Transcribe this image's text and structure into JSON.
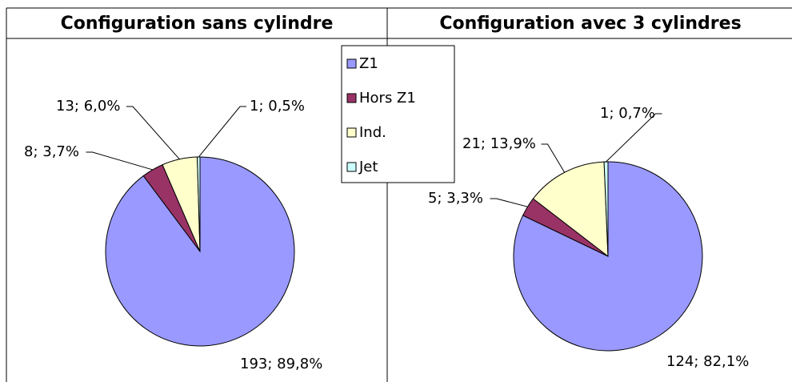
{
  "chart_data": [
    {
      "type": "pie",
      "title": "Configuration sans cylindre",
      "categories": [
        "Z1",
        "Hors Z1",
        "Ind.",
        "Jet"
      ],
      "values": [
        193,
        8,
        13,
        1
      ],
      "value_labels": [
        "193; 89,8%",
        "8; 3,7%",
        "13; 6,0%",
        "1; 0,5%"
      ],
      "colors": [
        "#9999ff",
        "#993366",
        "#ffffcc",
        "#ccffff"
      ]
    },
    {
      "type": "pie",
      "title": "Configuration avec 3 cylindres",
      "categories": [
        "Z1",
        "Hors Z1",
        "Ind.",
        "Jet"
      ],
      "values": [
        124,
        5,
        21,
        1
      ],
      "value_labels": [
        "124; 82,1%",
        "5; 3,3%",
        "21; 13,9%",
        "1; 0,7%"
      ],
      "colors": [
        "#9999ff",
        "#993366",
        "#ffffcc",
        "#ccffff"
      ]
    }
  ]
}
